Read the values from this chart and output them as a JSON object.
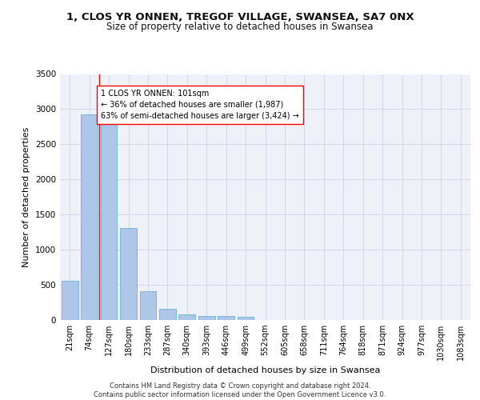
{
  "title1": "1, CLOS YR ONNEN, TREGOF VILLAGE, SWANSEA, SA7 0NX",
  "title2": "Size of property relative to detached houses in Swansea",
  "xlabel": "Distribution of detached houses by size in Swansea",
  "ylabel": "Number of detached properties",
  "categories": [
    "21sqm",
    "74sqm",
    "127sqm",
    "180sqm",
    "233sqm",
    "287sqm",
    "340sqm",
    "393sqm",
    "446sqm",
    "499sqm",
    "552sqm",
    "605sqm",
    "658sqm",
    "711sqm",
    "764sqm",
    "818sqm",
    "871sqm",
    "924sqm",
    "977sqm",
    "1030sqm",
    "1083sqm"
  ],
  "values": [
    560,
    2920,
    2920,
    1310,
    410,
    155,
    80,
    60,
    55,
    40,
    0,
    0,
    0,
    0,
    0,
    0,
    0,
    0,
    0,
    0,
    0
  ],
  "bar_color": "#aec6e8",
  "bar_edge_color": "#6baed6",
  "grid_color": "#d0d8e8",
  "bg_color": "#eef2f8",
  "annotation_text": "1 CLOS YR ONNEN: 101sqm\n← 36% of detached houses are smaller (1,987)\n63% of semi-detached houses are larger (3,424) →",
  "vline_x": 1.5,
  "ylim": [
    0,
    3500
  ],
  "yticks": [
    0,
    500,
    1000,
    1500,
    2000,
    2500,
    3000,
    3500
  ],
  "footer": "Contains HM Land Registry data © Crown copyright and database right 2024.\nContains public sector information licensed under the Open Government Licence v3.0.",
  "title_fontsize": 9.5,
  "subtitle_fontsize": 8.5,
  "tick_fontsize": 7,
  "ylabel_fontsize": 8,
  "xlabel_fontsize": 8,
  "annotation_fontsize": 7,
  "footer_fontsize": 6
}
